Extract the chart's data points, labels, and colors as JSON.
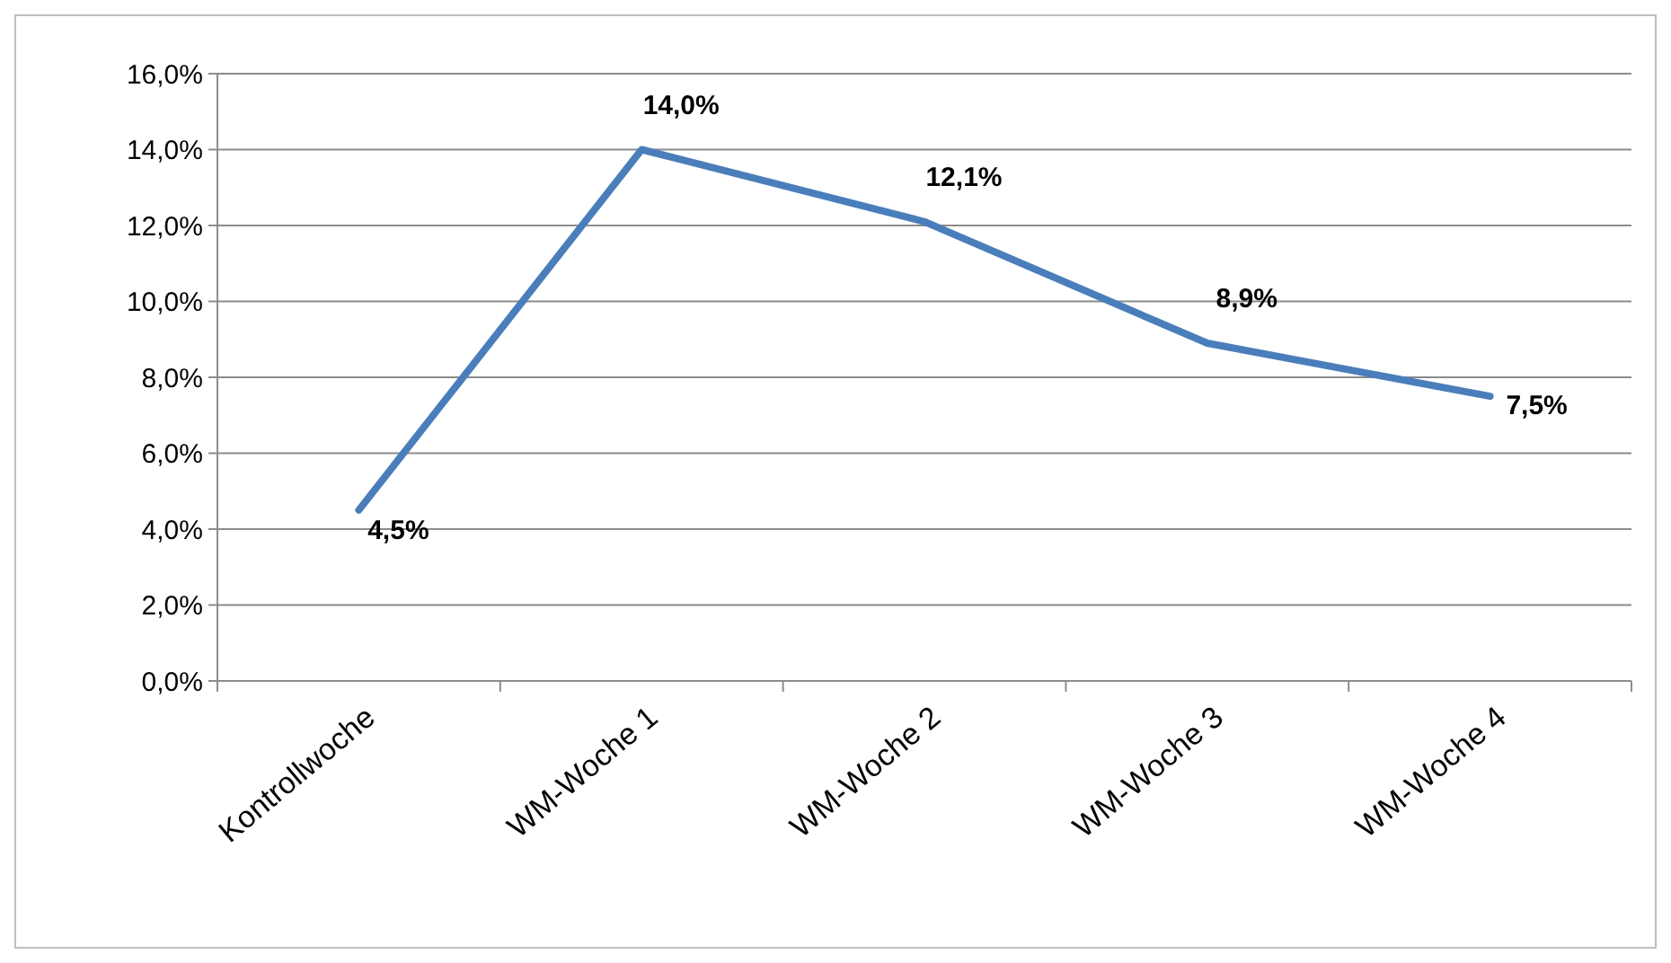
{
  "chart_data": {
    "type": "line",
    "categories": [
      "Kontrollwoche",
      "WM-Woche 1",
      "WM-Woche 2",
      "WM-Woche 3",
      "WM-Woche 4"
    ],
    "series": [
      {
        "color": "#4a7ebb",
        "values": [
          4.5,
          14.0,
          12.1,
          8.9,
          7.5
        ]
      }
    ],
    "value_labels": [
      "4,5%",
      "14,0%",
      "12,1%",
      "8,9%",
      "7,5%"
    ],
    "ylim": [
      0,
      16
    ],
    "yticks": [
      {
        "value": 0,
        "label": "0,0%"
      },
      {
        "value": 2,
        "label": "2,0%"
      },
      {
        "value": 4,
        "label": "4,0%"
      },
      {
        "value": 6,
        "label": "6,0%"
      },
      {
        "value": 8,
        "label": "8,0%"
      },
      {
        "value": 10,
        "label": "10,0%"
      },
      {
        "value": 12,
        "label": "12,0%"
      },
      {
        "value": 14,
        "label": "14,0%"
      },
      {
        "value": 16,
        "label": "16,0%"
      }
    ],
    "grid": "y",
    "marker": "none",
    "line_style": "solid"
  }
}
